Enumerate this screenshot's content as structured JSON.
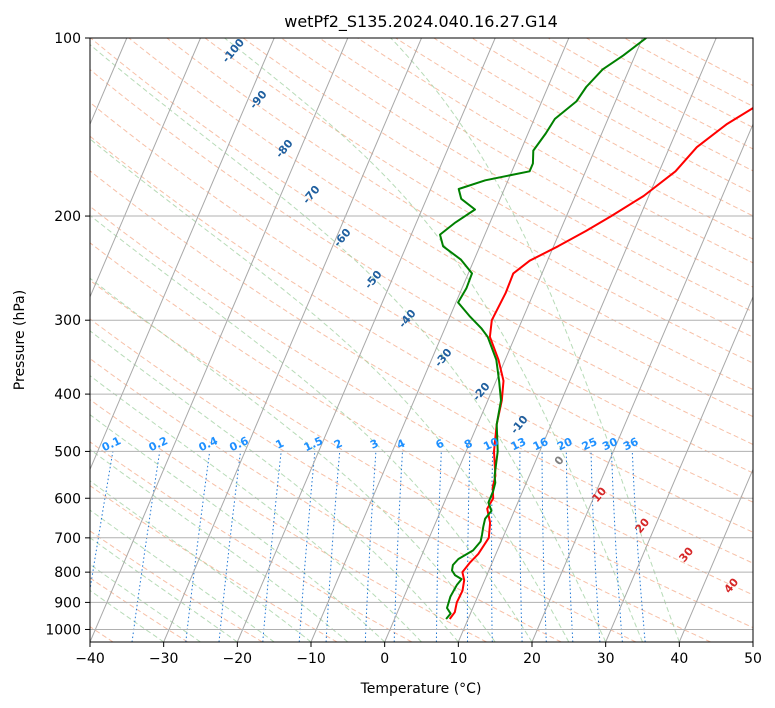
{
  "chart_data": {
    "type": "line",
    "title": "wetPf2_S135.2024.040.16.27.G14",
    "xlabel": "Temperature (°C)",
    "ylabel": "Pressure (hPa)",
    "xlim": [
      -40,
      50
    ],
    "ylim": [
      1050,
      100
    ],
    "y_scale": "log",
    "grid": true,
    "x_ticks": [
      -40,
      -30,
      -20,
      -10,
      0,
      10,
      20,
      30,
      40,
      50
    ],
    "x_tick_labels": [
      "−40",
      "−30",
      "−20",
      "−10",
      "0",
      "10",
      "20",
      "30",
      "40",
      "50"
    ],
    "y_ticks": [
      1000,
      900,
      800,
      700,
      600,
      500,
      400,
      300,
      200,
      100
    ],
    "y_tick_labels": [
      "1000",
      "900",
      "800",
      "700",
      "600",
      "500",
      "400",
      "300",
      "200",
      "100"
    ],
    "series": [
      {
        "color": "#ff0000",
        "points": [
          [
            7.5,
            960
          ],
          [
            7.8,
            935
          ],
          [
            7.5,
            900
          ],
          [
            7.6,
            860
          ],
          [
            7.2,
            825
          ],
          [
            6.5,
            800
          ],
          [
            7.0,
            770
          ],
          [
            7.6,
            745
          ],
          [
            8.1,
            700
          ],
          [
            7.4,
            660
          ],
          [
            6.2,
            625
          ],
          [
            6.4,
            600
          ],
          [
            5.7,
            575
          ],
          [
            5.4,
            550
          ],
          [
            3.8,
            500
          ],
          [
            2.6,
            450
          ],
          [
            1.9,
            410
          ],
          [
            1.0,
            380
          ],
          [
            -0.9,
            350
          ],
          [
            -3.4,
            320
          ],
          [
            -4.1,
            300
          ],
          [
            -3.8,
            270
          ],
          [
            -3.9,
            250
          ],
          [
            -2.4,
            238
          ],
          [
            0.6,
            225
          ],
          [
            3.5,
            212
          ],
          [
            6.1,
            200
          ],
          [
            9.3,
            185
          ],
          [
            12.2,
            168
          ],
          [
            13.7,
            153
          ],
          [
            16.4,
            140
          ],
          [
            19.5,
            130
          ],
          [
            24.5,
            118
          ],
          [
            28.5,
            109
          ],
          [
            31.8,
            103
          ],
          [
            33.8,
            100
          ]
        ]
      },
      {
        "color": "#008000",
        "points": [
          [
            7.0,
            960
          ],
          [
            7.3,
            940
          ],
          [
            6.5,
            920
          ],
          [
            6.3,
            880
          ],
          [
            6.5,
            840
          ],
          [
            6.8,
            822
          ],
          [
            5.7,
            810
          ],
          [
            5.0,
            795
          ],
          [
            4.8,
            778
          ],
          [
            5.2,
            760
          ],
          [
            6.7,
            735
          ],
          [
            7.2,
            710
          ],
          [
            7.0,
            692
          ],
          [
            6.7,
            670
          ],
          [
            6.5,
            650
          ],
          [
            6.9,
            630
          ],
          [
            6.0,
            610
          ],
          [
            6.0,
            585
          ],
          [
            5.8,
            565
          ],
          [
            5.3,
            550
          ],
          [
            4.3,
            500
          ],
          [
            2.6,
            450
          ],
          [
            1.8,
            410
          ],
          [
            0.4,
            380
          ],
          [
            -1.2,
            350
          ],
          [
            -3.7,
            320
          ],
          [
            -5.0,
            310
          ],
          [
            -7.4,
            295
          ],
          [
            -9.7,
            280
          ],
          [
            -9.4,
            265
          ],
          [
            -9.5,
            250
          ],
          [
            -11.8,
            237
          ],
          [
            -15.0,
            225
          ],
          [
            -16.1,
            215
          ],
          [
            -14.7,
            205
          ],
          [
            -12.8,
            195
          ],
          [
            -15.3,
            187
          ],
          [
            -16.2,
            180
          ],
          [
            -13.1,
            174
          ],
          [
            -7.6,
            168
          ],
          [
            -7.6,
            163
          ],
          [
            -8.3,
            155
          ],
          [
            -7.6,
            145
          ],
          [
            -7.2,
            137
          ],
          [
            -5.3,
            128
          ],
          [
            -4.8,
            121
          ],
          [
            -3.6,
            113
          ],
          [
            -1.6,
            107
          ],
          [
            0.5,
            100
          ]
        ]
      }
    ],
    "dry_adiabat_labels": [
      "-100",
      "-90",
      "-80",
      "-70",
      "-60",
      "-50",
      "-40",
      "-30",
      "-20",
      "-10",
      "0",
      "10",
      "20",
      "30",
      "40"
    ],
    "mixing_ratio_labels": [
      "0.1",
      "0.2",
      "0.4",
      "0.6",
      "1",
      "1.5",
      "2",
      "3",
      "4",
      "6",
      "8",
      "10",
      "13",
      "16",
      "20",
      "25",
      "30",
      "36"
    ]
  }
}
